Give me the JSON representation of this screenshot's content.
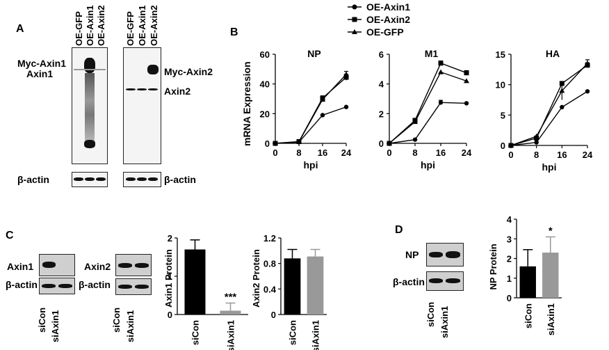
{
  "panel_letters": {
    "a": "A",
    "b": "B",
    "c": "C",
    "d": "D"
  },
  "panel_a": {
    "lanes": [
      "OE-GFP",
      "OE-Axin1",
      "OE-Axin2"
    ],
    "labels": {
      "myc_axin1": "Myc-Axin1",
      "axin1": "Axin1",
      "myc_axin2": "Myc-Axin2",
      "axin2": "Axin2",
      "actin": "β-actin"
    }
  },
  "panel_c": {
    "lanes": [
      "siCon",
      "siAxin1"
    ],
    "labels": {
      "axin1": "Axin1",
      "axin2": "Axin2",
      "actin": "β-actin"
    }
  },
  "panel_d": {
    "lanes": [
      "siCon",
      "siAxin1"
    ],
    "labels": {
      "np": "NP",
      "actin": "β-actin"
    }
  },
  "chart_data": [
    {
      "type": "line",
      "title": "NP",
      "xlabel": "hpi",
      "ylabel": "mRNA Expression",
      "x": [
        0,
        8,
        16,
        24
      ],
      "xlim": [
        0,
        24
      ],
      "ylim": [
        0,
        60
      ],
      "yticks": [
        0,
        20,
        40,
        60
      ],
      "series": [
        {
          "name": "OE-Axin1",
          "marker": "circle",
          "values": [
            0,
            0.8,
            19,
            24.5
          ]
        },
        {
          "name": "OE-Axin2",
          "marker": "square",
          "values": [
            0,
            1.2,
            30.5,
            44.5
          ],
          "errors": [
            0,
            0.5,
            1.5,
            2
          ]
        },
        {
          "name": "OE-GFP",
          "marker": "triangle",
          "values": [
            0,
            1.0,
            29.5,
            46.5
          ],
          "errors": [
            0,
            0.5,
            1.5,
            2
          ]
        }
      ]
    },
    {
      "type": "line",
      "title": "M1",
      "xlabel": "hpi",
      "ylabel": "",
      "x": [
        0,
        8,
        16,
        24
      ],
      "xlim": [
        0,
        24
      ],
      "ylim": [
        0,
        6
      ],
      "yticks": [
        0,
        2,
        4,
        6
      ],
      "series": [
        {
          "name": "OE-Axin1",
          "marker": "circle",
          "values": [
            0,
            0.25,
            2.75,
            2.7
          ],
          "errors": [
            0,
            0,
            0.15,
            0
          ]
        },
        {
          "name": "OE-Axin2",
          "marker": "square",
          "values": [
            0,
            1.55,
            5.4,
            4.75
          ],
          "errors": [
            0,
            0.1,
            0.15,
            0.15
          ]
        },
        {
          "name": "OE-GFP",
          "marker": "triangle",
          "values": [
            0,
            1.45,
            4.8,
            4.2
          ]
        }
      ]
    },
    {
      "type": "line",
      "title": "HA",
      "xlabel": "hpi",
      "ylabel": "",
      "x": [
        0,
        8,
        16,
        24
      ],
      "xlim": [
        0,
        24
      ],
      "ylim": [
        0,
        15
      ],
      "yticks": [
        0,
        5,
        10,
        15
      ],
      "series": [
        {
          "name": "OE-Axin1",
          "marker": "circle",
          "values": [
            0,
            0.5,
            6.3,
            8.9
          ]
        },
        {
          "name": "OE-Axin2",
          "marker": "square",
          "values": [
            0,
            1.2,
            10.2,
            13.2
          ],
          "errors": [
            0,
            0,
            0.3,
            0.4
          ]
        },
        {
          "name": "OE-GFP",
          "marker": "triangle",
          "values": [
            0,
            1.5,
            9.0,
            13.5
          ],
          "errors": [
            0,
            0,
            1.5,
            0.6
          ]
        }
      ]
    },
    {
      "type": "bar",
      "ylabel": "Axin1 Protein",
      "categories": [
        "siCon",
        "siAxin1"
      ],
      "values": [
        1.7,
        0.1
      ],
      "errors": [
        0.25,
        0.2
      ],
      "ylim": [
        0,
        2
      ],
      "yticks": [
        0,
        1,
        2
      ],
      "annotations": [
        {
          "category": "siAxin1",
          "text": "***"
        }
      ],
      "colors": [
        "#000000",
        "#999999"
      ]
    },
    {
      "type": "bar",
      "ylabel": "Axin2 Protein",
      "categories": [
        "siCon",
        "siAxin1"
      ],
      "values": [
        0.88,
        0.91
      ],
      "errors": [
        0.14,
        0.11
      ],
      "ylim": [
        0,
        1.2
      ],
      "yticks": [
        0,
        0.4,
        0.8,
        1.2
      ],
      "colors": [
        "#000000",
        "#999999"
      ]
    },
    {
      "type": "bar",
      "ylabel": "NP Protein",
      "categories": [
        "siCon",
        "siAxin1"
      ],
      "values": [
        1.6,
        2.3
      ],
      "errors": [
        0.85,
        0.8
      ],
      "ylim": [
        0,
        4
      ],
      "yticks": [
        0,
        1,
        2,
        3,
        4
      ],
      "annotations": [
        {
          "category": "siAxin1",
          "text": "*"
        }
      ],
      "colors": [
        "#000000",
        "#999999"
      ]
    }
  ]
}
